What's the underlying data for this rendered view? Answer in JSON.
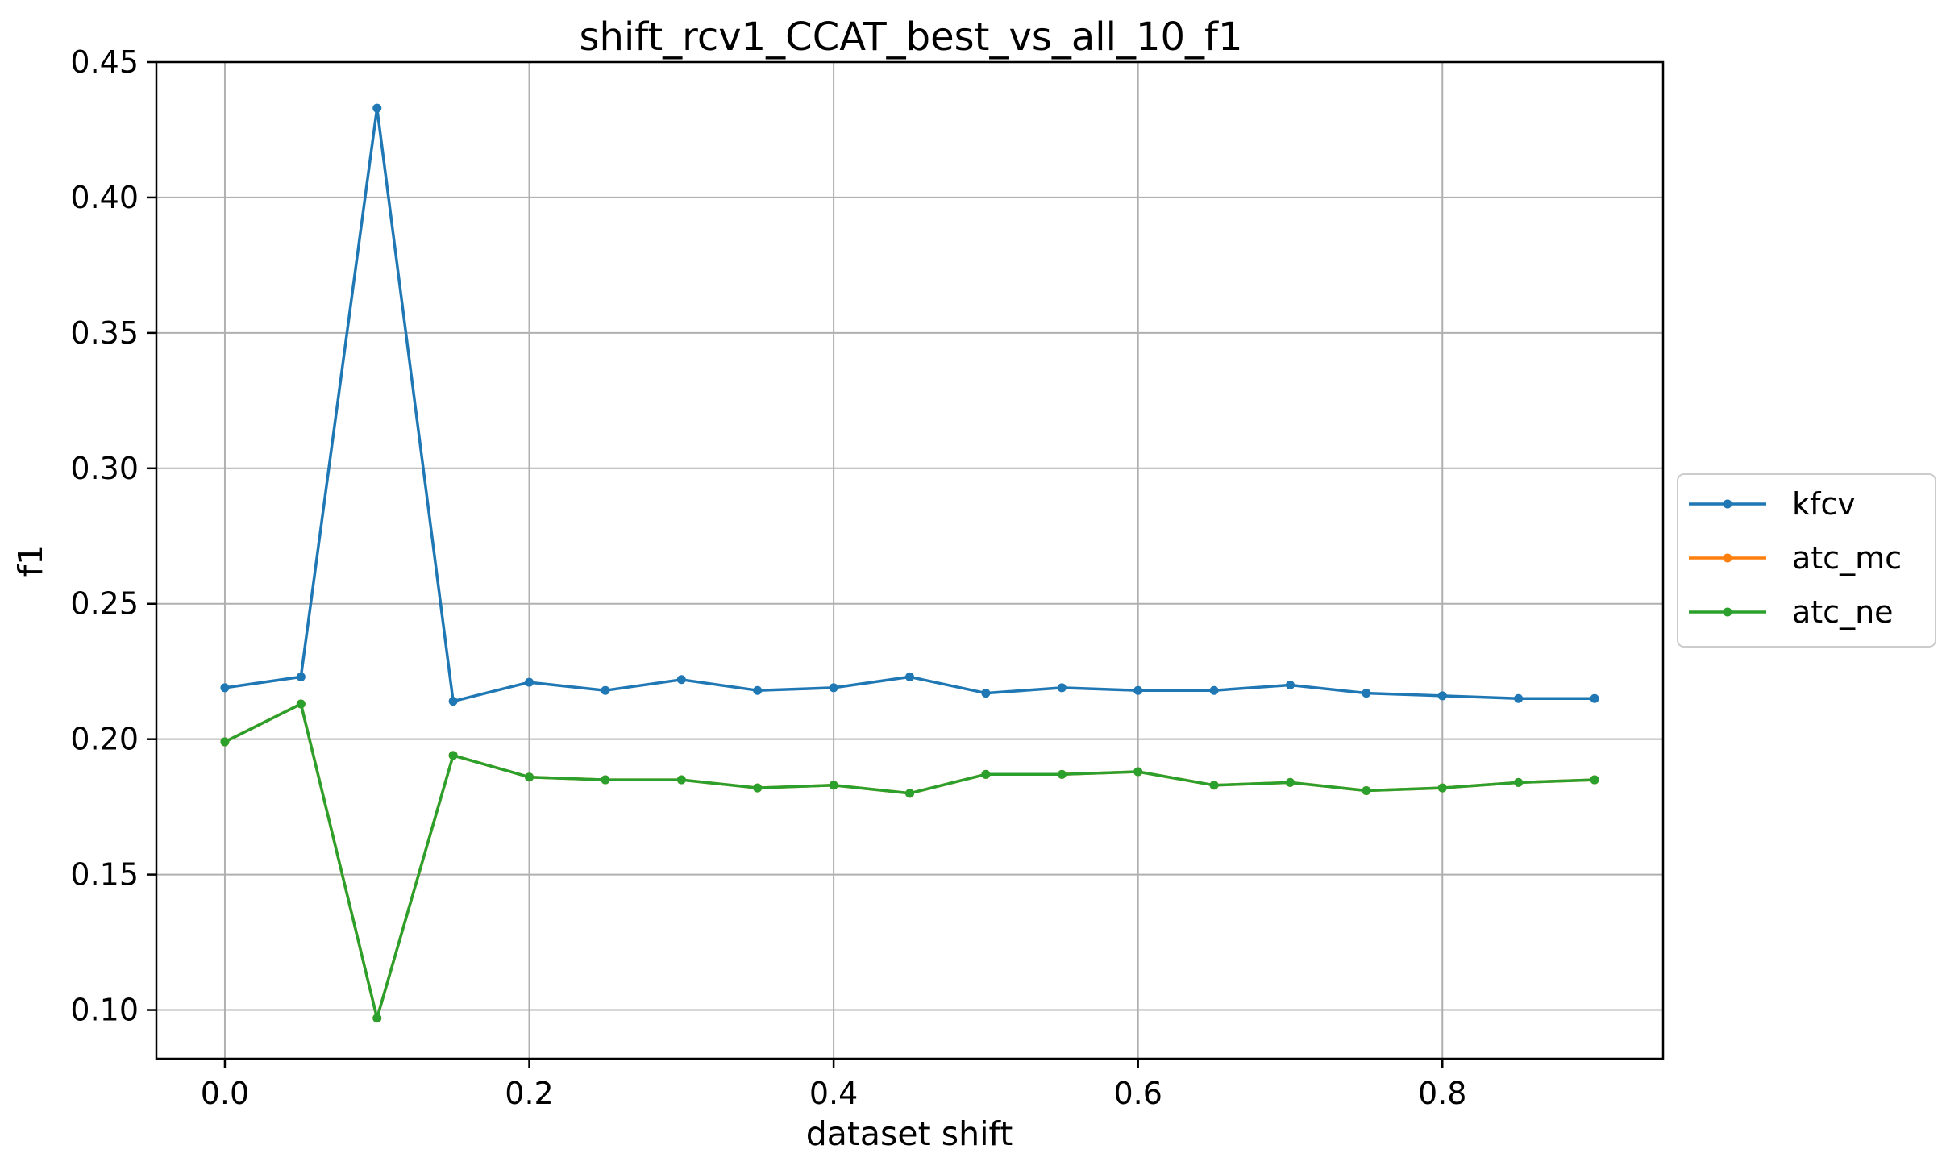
{
  "chart_data": {
    "type": "line",
    "title": "shift_rcv1_CCAT_best_vs_all_10_f1",
    "xlabel": "dataset shift",
    "ylabel": "f1",
    "xlim": [
      -0.045,
      0.945
    ],
    "ylim": [
      0.082,
      0.45
    ],
    "x_ticks": [
      0.0,
      0.2,
      0.4,
      0.6,
      0.8
    ],
    "x_tick_labels": [
      "0.0",
      "0.2",
      "0.4",
      "0.6",
      "0.8"
    ],
    "y_ticks": [
      0.1,
      0.15,
      0.2,
      0.25,
      0.3,
      0.35,
      0.4,
      0.45
    ],
    "y_tick_labels": [
      "0.10",
      "0.15",
      "0.20",
      "0.25",
      "0.30",
      "0.35",
      "0.40",
      "0.45"
    ],
    "grid": true,
    "legend_position": "outside-right",
    "x": [
      0.0,
      0.05,
      0.1,
      0.15,
      0.2,
      0.25,
      0.3,
      0.35,
      0.4,
      0.45,
      0.5,
      0.55,
      0.6,
      0.65,
      0.7,
      0.75,
      0.8,
      0.85,
      0.9
    ],
    "series": [
      {
        "name": "kfcv",
        "color": "#1f77b4",
        "values": [
          0.219,
          0.223,
          0.433,
          0.214,
          0.221,
          0.218,
          0.222,
          0.218,
          0.219,
          0.223,
          0.217,
          0.219,
          0.218,
          0.218,
          0.22,
          0.217,
          0.216,
          0.215,
          0.215
        ]
      },
      {
        "name": "atc_mc",
        "color": "#ff7f0e",
        "values": [
          0.199,
          0.213,
          0.097,
          0.194,
          0.186,
          0.185,
          0.185,
          0.182,
          0.183,
          0.18,
          0.187,
          0.187,
          0.188,
          0.183,
          0.184,
          0.181,
          0.182,
          0.184,
          0.185
        ]
      },
      {
        "name": "atc_ne",
        "color": "#2ca02c",
        "values": [
          0.199,
          0.213,
          0.097,
          0.194,
          0.186,
          0.185,
          0.185,
          0.182,
          0.183,
          0.18,
          0.187,
          0.187,
          0.188,
          0.183,
          0.184,
          0.181,
          0.182,
          0.184,
          0.185
        ]
      }
    ]
  }
}
